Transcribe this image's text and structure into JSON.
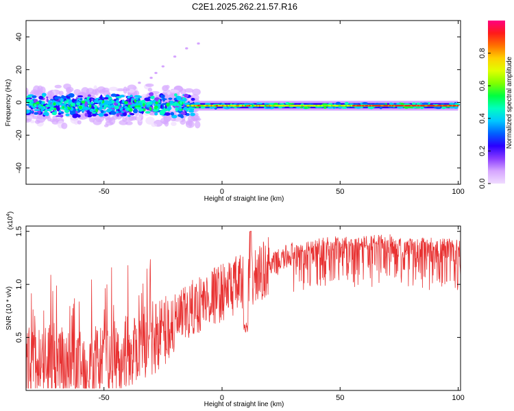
{
  "title": "C2E1.2025.262.21.57.R16",
  "chart_data": [
    {
      "type": "heatmap",
      "xlabel": "Height of straight line (km)",
      "ylabel": "Frequency (Hz)",
      "xlim": [
        -83,
        101
      ],
      "ylim": [
        -50,
        50
      ],
      "xticks": [
        -50,
        0,
        50,
        100
      ],
      "yticks": [
        -40,
        -20,
        0,
        20,
        40
      ],
      "colorbar": {
        "label": "Normalized spectral amplitude",
        "range": [
          0,
          1
        ],
        "ticks": [
          "0.0",
          "0.2",
          "0.4",
          "0.6",
          "0.8"
        ],
        "colors": [
          "#f0dcff",
          "#d6a6ff",
          "#8a3cff",
          "#2a00ff",
          "#0060ff",
          "#00c8ff",
          "#00ffc0",
          "#00ff40",
          "#80ff00",
          "#e0ff00",
          "#ffd000",
          "#ff7000",
          "#ff1a1a",
          "#ff0080"
        ]
      },
      "features": {
        "main_line_frequency_hz": -2,
        "strong_band_x_range_km": [
          -15,
          100
        ],
        "scattered_region_x_range_km": [
          -83,
          -15
        ],
        "sparse_points": [
          [
            -35,
            12
          ],
          [
            -30,
            15
          ],
          [
            -28,
            18
          ],
          [
            -25,
            22
          ],
          [
            -20,
            28
          ],
          [
            -15,
            33
          ],
          [
            -10,
            36
          ]
        ]
      }
    },
    {
      "type": "line",
      "xlabel": "Height of straight line (km)",
      "ylabel": "SNR (10 * v/v)",
      "multiplier_label": "(x10",
      "multiplier_exp": "4",
      "xlim": [
        -83,
        101
      ],
      "ylim": [
        0,
        1.55
      ],
      "xticks": [
        -50,
        0,
        50,
        100
      ],
      "yticks": [
        0.5,
        1.0,
        1.5
      ],
      "ytick_labels": [
        "0.5",
        "1.0",
        "1.5"
      ],
      "color": "#e83232",
      "series": [
        {
          "x": [
            -83,
            -75,
            -65,
            -55,
            -45,
            -38,
            -30,
            -20,
            -10,
            -5,
            0,
            5,
            10,
            15,
            20,
            30,
            40,
            50,
            60,
            70,
            80,
            90,
            101
          ],
          "y": [
            0.2,
            0.25,
            0.2,
            0.22,
            0.28,
            0.35,
            0.45,
            0.6,
            0.78,
            0.85,
            0.9,
            0.95,
            1.0,
            1.05,
            1.15,
            1.28,
            1.36,
            1.38,
            1.39,
            1.4,
            1.38,
            1.36,
            1.35
          ]
        }
      ]
    }
  ]
}
